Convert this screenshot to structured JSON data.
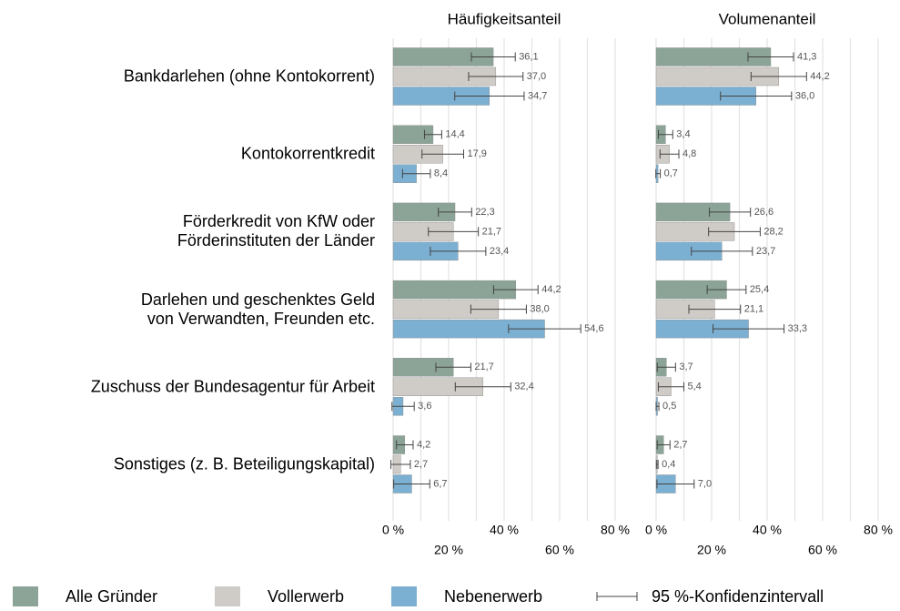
{
  "chart_data": {
    "type": "bar",
    "orientation": "horizontal",
    "categories": [
      "Bankdarlehen (ohne Kontokorrent)",
      "Kontokorrentkredit",
      "Förderkredit von KfW oder\nFörderinstituten der Länder",
      "Darlehen und geschenktes Geld\nvon Verwandten, Freunden etc.",
      "Zuschuss der Bundesagentur für Arbeit",
      "Sonstiges (z. B. Beteiligungskapital)"
    ],
    "series": [
      {
        "name": "Alle Gründer",
        "color": "#8ba497"
      },
      {
        "name": "Vollerwerb",
        "color": "#cfcbc6"
      },
      {
        "name": "Nebenerwerb",
        "color": "#7cb0d2"
      }
    ],
    "error_bar_label": "95 %-Konfidenzintervall",
    "grid": true,
    "xlim": [
      0,
      80
    ],
    "xticks": [
      {
        "value": 0,
        "label": "0 %"
      },
      {
        "value": 20,
        "label": "20 %"
      },
      {
        "value": 40,
        "label": "40 %"
      },
      {
        "value": 60,
        "label": "60 %"
      },
      {
        "value": 80,
        "label": "80 %"
      }
    ],
    "xminor": [
      10,
      30,
      50,
      70
    ],
    "panels": [
      {
        "title": "Häufigkeitsanteil",
        "series": [
          {
            "values": [
              36.1,
              14.4,
              22.3,
              44.2,
              21.7,
              4.2
            ],
            "value_labels": [
              "36,1",
              "14,4",
              "22,3",
              "44,2",
              "21,7",
              "4,2"
            ],
            "errors": [
              7.9,
              3.1,
              6,
              8,
              6.3,
              3
            ]
          },
          {
            "values": [
              37.0,
              17.9,
              21.7,
              38.0,
              32.4,
              2.7
            ],
            "value_labels": [
              "37,0",
              "17,9",
              "21,7",
              "38,0",
              "32,4",
              "2,7"
            ],
            "errors": [
              9.8,
              7.5,
              9,
              10,
              10,
              3.5
            ]
          },
          {
            "values": [
              34.7,
              8.4,
              23.4,
              54.6,
              3.6,
              6.7
            ],
            "value_labels": [
              "34,7",
              "8,4",
              "23,4",
              "54,6",
              "3,6",
              "6,7"
            ],
            "errors": [
              12.5,
              5,
              10,
              13,
              4,
              6.5
            ]
          }
        ]
      },
      {
        "title": "Volumenanteil",
        "series": [
          {
            "values": [
              41.3,
              3.4,
              26.6,
              25.4,
              3.7,
              2.7
            ],
            "value_labels": [
              "41,3",
              "3,4",
              "26,6",
              "25,4",
              "3,7",
              "2,7"
            ],
            "errors": [
              8.2,
              2.6,
              7.4,
              7,
              3.3,
              2.3
            ]
          },
          {
            "values": [
              44.2,
              4.8,
              28.2,
              21.1,
              5.4,
              0.4
            ],
            "value_labels": [
              "44,2",
              "4,8",
              "28,2",
              "21,1",
              "5,4",
              "0,4"
            ],
            "errors": [
              10,
              3.4,
              9.3,
              9.3,
              4.6,
              0.3
            ]
          },
          {
            "values": [
              36.0,
              0.7,
              23.7,
              33.3,
              0.5,
              7.0
            ],
            "value_labels": [
              "36,0",
              "0,7",
              "23,7",
              "33,3",
              "0,5",
              "7,0"
            ],
            "errors": [
              12.8,
              0.8,
              11,
              12.8,
              0.5,
              6.7
            ]
          }
        ]
      }
    ]
  }
}
